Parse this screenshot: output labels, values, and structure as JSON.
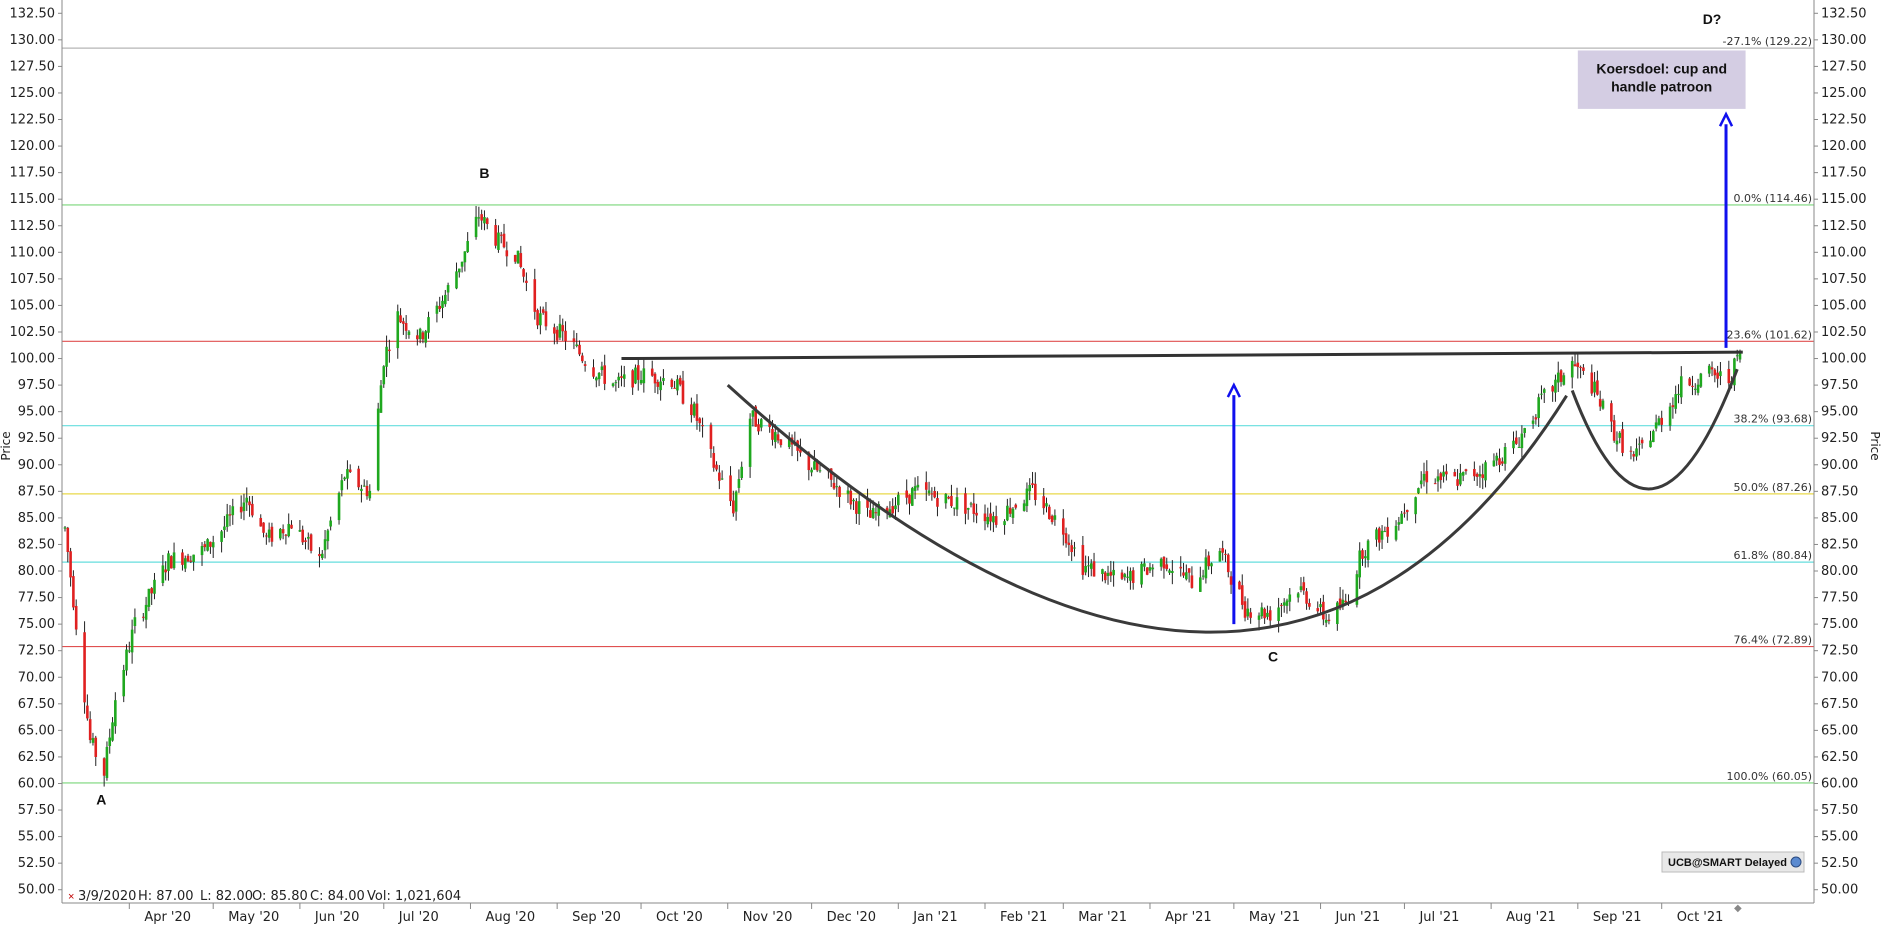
{
  "chart_data": {
    "type": "candlestick",
    "y_axis": {
      "min": 48.75,
      "max": 133.75,
      "ticks": [
        "50.00",
        "52.50",
        "55.00",
        "57.50",
        "60.00",
        "62.50",
        "65.00",
        "67.50",
        "70.00",
        "72.50",
        "75.00",
        "77.50",
        "80.00",
        "82.50",
        "85.00",
        "87.50",
        "90.00",
        "92.50",
        "95.00",
        "97.50",
        "100.00",
        "102.50",
        "105.00",
        "107.50",
        "110.00",
        "112.50",
        "115.00",
        "117.50",
        "120.00",
        "122.50",
        "125.00",
        "127.50",
        "130.00",
        "132.50"
      ],
      "label_left": "Price",
      "label_right": "Price"
    },
    "x_axis": {
      "start": "2020-03-09",
      "end": "2021-10-29",
      "months": [
        {
          "label": "Apr '20",
          "date": "2020-04-01"
        },
        {
          "label": "May '20",
          "date": "2020-05-01"
        },
        {
          "label": "Jun '20",
          "date": "2020-06-01"
        },
        {
          "label": "Jul '20",
          "date": "2020-07-01"
        },
        {
          "label": "Aug '20",
          "date": "2020-08-01"
        },
        {
          "label": "Sep '20",
          "date": "2020-09-01"
        },
        {
          "label": "Oct '20",
          "date": "2020-10-01"
        },
        {
          "label": "Nov '20",
          "date": "2020-11-01"
        },
        {
          "label": "Dec '20",
          "date": "2020-12-01"
        },
        {
          "label": "Jan '21",
          "date": "2021-01-01"
        },
        {
          "label": "Feb '21",
          "date": "2021-02-01"
        },
        {
          "label": "Mar '21",
          "date": "2021-03-01"
        },
        {
          "label": "Apr '21",
          "date": "2021-04-01"
        },
        {
          "label": "May '21",
          "date": "2021-05-01"
        },
        {
          "label": "Jun '21",
          "date": "2021-06-01"
        },
        {
          "label": "Jul '21",
          "date": "2021-07-01"
        },
        {
          "label": "Aug '21",
          "date": "2021-08-01"
        },
        {
          "label": "Sep '21",
          "date": "2021-09-01"
        },
        {
          "label": "Oct '21",
          "date": "2021-10-01"
        }
      ]
    },
    "price_path": [
      [
        "2020-03-09",
        84.0
      ],
      [
        "2020-03-18",
        64.0
      ],
      [
        "2020-03-23",
        61.0
      ],
      [
        "2020-03-27",
        68.0
      ],
      [
        "2020-04-03",
        75.0
      ],
      [
        "2020-04-15",
        81.0
      ],
      [
        "2020-04-28",
        82.0
      ],
      [
        "2020-05-06",
        84.5
      ],
      [
        "2020-05-13",
        87.0
      ],
      [
        "2020-05-20",
        83.0
      ],
      [
        "2020-05-29",
        84.5
      ],
      [
        "2020-06-08",
        81.0
      ],
      [
        "2020-06-17",
        89.0
      ],
      [
        "2020-06-26",
        87.5
      ],
      [
        "2020-07-01",
        100.0
      ],
      [
        "2020-07-06",
        104.0
      ],
      [
        "2020-07-14",
        102.0
      ],
      [
        "2020-07-23",
        106.0
      ],
      [
        "2020-07-30",
        110.0
      ],
      [
        "2020-08-04",
        113.5
      ],
      [
        "2020-08-11",
        111.0
      ],
      [
        "2020-08-17",
        110.0
      ],
      [
        "2020-08-25",
        104.0
      ],
      [
        "2020-09-04",
        102.0
      ],
      [
        "2020-09-14",
        99.0
      ],
      [
        "2020-09-22",
        97.5
      ],
      [
        "2020-10-01",
        98.5
      ],
      [
        "2020-10-12",
        98.0
      ],
      [
        "2020-10-20",
        95.0
      ],
      [
        "2020-10-27",
        90.0
      ],
      [
        "2020-11-03",
        86.0
      ],
      [
        "2020-11-09",
        94.5
      ],
      [
        "2020-11-18",
        93.0
      ],
      [
        "2020-11-30",
        90.0
      ],
      [
        "2020-12-10",
        88.0
      ],
      [
        "2020-12-22",
        85.0
      ],
      [
        "2021-01-07",
        87.5
      ],
      [
        "2021-01-21",
        86.5
      ],
      [
        "2021-02-05",
        85.0
      ],
      [
        "2021-02-18",
        87.5
      ],
      [
        "2021-03-01",
        84.0
      ],
      [
        "2021-03-08",
        80.5
      ],
      [
        "2021-03-22",
        79.0
      ],
      [
        "2021-04-06",
        81.0
      ],
      [
        "2021-04-16",
        79.0
      ],
      [
        "2021-04-26",
        82.0
      ],
      [
        "2021-05-05",
        76.5
      ],
      [
        "2021-05-14",
        76.0
      ],
      [
        "2021-05-24",
        78.5
      ],
      [
        "2021-06-03",
        75.5
      ],
      [
        "2021-06-10",
        77.0
      ],
      [
        "2021-06-16",
        82.0
      ],
      [
        "2021-06-29",
        85.0
      ],
      [
        "2021-07-08",
        89.0
      ],
      [
        "2021-07-19",
        88.5
      ],
      [
        "2021-07-29",
        89.5
      ],
      [
        "2021-08-10",
        92.0
      ],
      [
        "2021-08-19",
        96.0
      ],
      [
        "2021-08-30",
        99.5
      ],
      [
        "2021-09-06",
        97.5
      ],
      [
        "2021-09-14",
        93.0
      ],
      [
        "2021-09-21",
        90.5
      ],
      [
        "2021-09-30",
        94.0
      ],
      [
        "2021-10-08",
        97.5
      ],
      [
        "2021-10-18",
        98.5
      ],
      [
        "2021-10-25",
        98.0
      ],
      [
        "2021-10-29",
        100.5
      ]
    ],
    "fib_levels": [
      {
        "label": "-27.1% (129.22)",
        "value": 129.22,
        "color": "#b5b5b5"
      },
      {
        "label": "0.0% (114.46)",
        "value": 114.46,
        "color": "#7ad67a"
      },
      {
        "label": "23.6% (101.62)",
        "value": 101.62,
        "color": "#e05050"
      },
      {
        "label": "38.2% (93.68)",
        "value": 93.68,
        "color": "#66dede"
      },
      {
        "label": "50.0% (87.26)",
        "value": 87.26,
        "color": "#e8d84a"
      },
      {
        "label": "61.8% (80.84)",
        "value": 80.84,
        "color": "#66dede"
      },
      {
        "label": "76.4% (72.89)",
        "value": 72.89,
        "color": "#e05050"
      },
      {
        "label": "100.0% (60.05)",
        "value": 60.05,
        "color": "#7ad67a"
      }
    ],
    "neckline": {
      "from": [
        "2020-09-24",
        100.0
      ],
      "to": [
        "2021-10-30",
        100.6
      ]
    },
    "annotations": [
      {
        "label": "A",
        "date": "2020-03-22",
        "value": 58.0
      },
      {
        "label": "B",
        "date": "2020-08-06",
        "value": 117.0
      },
      {
        "label": "C",
        "date": "2021-05-15",
        "value": 71.5
      },
      {
        "label": "D?",
        "date": "2021-10-19",
        "value": 131.5
      }
    ],
    "arrows": [
      {
        "x": "2021-05-01",
        "from": 75.0,
        "to": 97.5
      },
      {
        "x": "2021-10-24",
        "from": 101.0,
        "to": 123.0
      }
    ],
    "target_box": {
      "line1": "Koersdoel: cup and",
      "line2": "handle patroon",
      "top": 129.0,
      "bottom": 123.5,
      "from": "2021-09-01",
      "to": "2021-10-31",
      "color": "#d4cde3"
    },
    "status_bar": {
      "date": "3/9/2020",
      "high": "H: 87.00",
      "low": "L: 82.00",
      "open": "O: 85.80",
      "close": "C: 84.00",
      "volume": "Vol: 1,021,604"
    },
    "badge": "UCB@SMART Delayed",
    "colors": {
      "up": "#1fa81f",
      "down": "#e02020",
      "neckline": "#333333",
      "cup": "#3a3a3a",
      "arrow": "#1010ee"
    }
  }
}
